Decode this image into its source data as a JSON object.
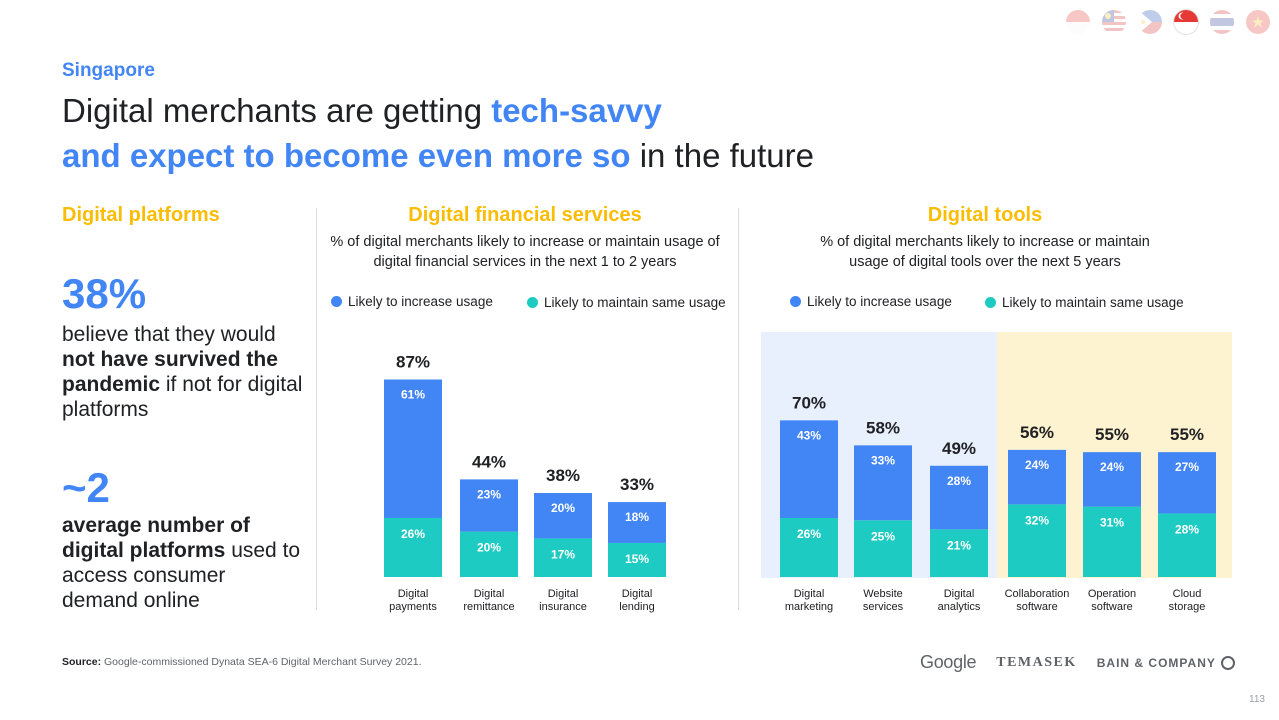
{
  "header": {
    "country": "Singapore",
    "title_part1": "Digital merchants are getting ",
    "title_hl1": "tech-savvy",
    "title_hl2": "and expect to become even more so",
    "title_part2": " in the future"
  },
  "flags": [
    {
      "name": "indonesia-flag-icon",
      "active": false
    },
    {
      "name": "malaysia-flag-icon",
      "active": false
    },
    {
      "name": "philippines-flag-icon",
      "active": false
    },
    {
      "name": "singapore-flag-icon",
      "active": true
    },
    {
      "name": "thailand-flag-icon",
      "active": false
    },
    {
      "name": "vietnam-flag-icon",
      "active": false
    }
  ],
  "platforms": {
    "title": "Digital platforms",
    "stat1_value": "38%",
    "stat1_pre": "believe that they would ",
    "stat1_bold": "not have survived the pandemic",
    "stat1_post": " if not for digital platforms",
    "stat2_value": "~2",
    "stat2_bold": "average number of digital platforms",
    "stat2_post": " used to access consumer demand online"
  },
  "legend": {
    "increase": "Likely to increase usage",
    "maintain": "Likely to maintain same usage"
  },
  "colors": {
    "blue": "#4285f4",
    "teal": "#1ecbc3",
    "yellow": "#fbbc04",
    "blue_bg": "#e8f0fe",
    "yellow_bg": "#fef3d0"
  },
  "chart_data": [
    {
      "type": "bar",
      "stacked": true,
      "title": "Digital financial services",
      "subtitle": "% of digital merchants likely to increase or maintain usage of digital financial services in the next 1 to 2 years",
      "categories": [
        "Digital payments",
        "Digital remittance",
        "Digital insurance",
        "Digital lending"
      ],
      "series": [
        {
          "name": "Likely to maintain same usage",
          "values": [
            26,
            20,
            17,
            15
          ]
        },
        {
          "name": "Likely to increase usage",
          "values": [
            61,
            23,
            20,
            18
          ]
        }
      ],
      "totals": [
        87,
        44,
        38,
        33
      ],
      "ylim": [
        0,
        100
      ]
    },
    {
      "type": "bar",
      "stacked": true,
      "title": "Digital tools",
      "subtitle": "% of digital merchants likely to increase or maintain usage of digital tools over the next 5 years",
      "categories": [
        "Digital marketing",
        "Website services",
        "Digital analytics",
        "Collaboration software",
        "Operation software",
        "Cloud storage"
      ],
      "series": [
        {
          "name": "Likely to maintain same usage",
          "values": [
            26,
            25,
            21,
            32,
            31,
            28
          ]
        },
        {
          "name": "Likely to increase usage",
          "values": [
            43,
            33,
            28,
            24,
            24,
            27
          ]
        }
      ],
      "totals": [
        70,
        58,
        49,
        56,
        55,
        55
      ],
      "ylim": [
        0,
        100
      ]
    }
  ],
  "footer": {
    "source_label": "Source:",
    "source_text": " Google-commissioned Dynata SEA-6 Digital Merchant Survey 2021.",
    "logo_google": "Google",
    "logo_temasek": "TEMASEK",
    "logo_bain": "BAIN & COMPANY",
    "page": "113"
  }
}
